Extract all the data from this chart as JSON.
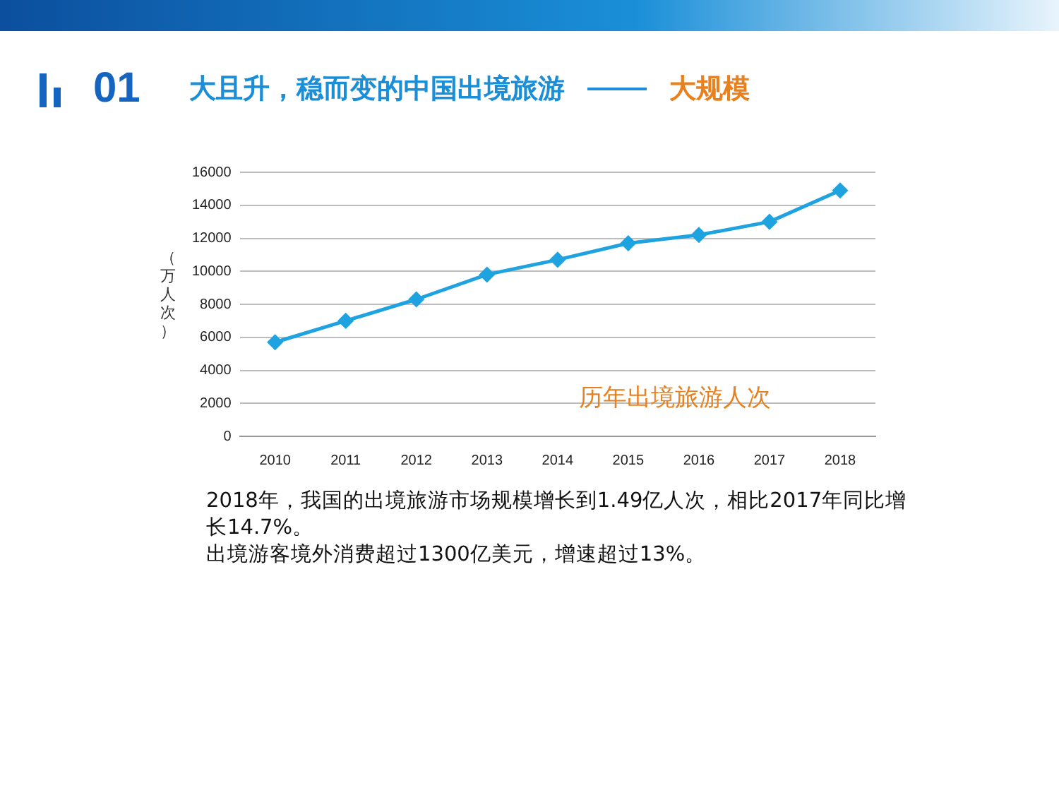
{
  "chart_data": {
    "type": "line",
    "title": "大且升，稳而变的中国出境旅游",
    "subtitle": "大规模",
    "ylabel": "（万人次）",
    "categories": [
      "2010",
      "2011",
      "2012",
      "2013",
      "2014",
      "2015",
      "2016",
      "2017",
      "2018"
    ],
    "series": [
      {
        "color": "#1fa3e0",
        "values": [
          5700,
          7000,
          8300,
          9800,
          10700,
          11700,
          12200,
          13000,
          14900
        ]
      }
    ],
    "ylim": [
      0,
      16000
    ],
    "yticks": [
      0,
      2000,
      4000,
      6000,
      8000,
      10000,
      12000,
      14000,
      16000
    ],
    "grid": "y",
    "legend": false,
    "marker": "diamond",
    "line_style": "solid",
    "annotations": [
      "01",
      "历年出境旅游人次",
      "2018年，我国的出境旅游市场规模增长到1.49亿人次，相比2017年同比增长14.7%。",
      "出境游客境外消费超过1300亿美元，增速超过13%。"
    ]
  }
}
